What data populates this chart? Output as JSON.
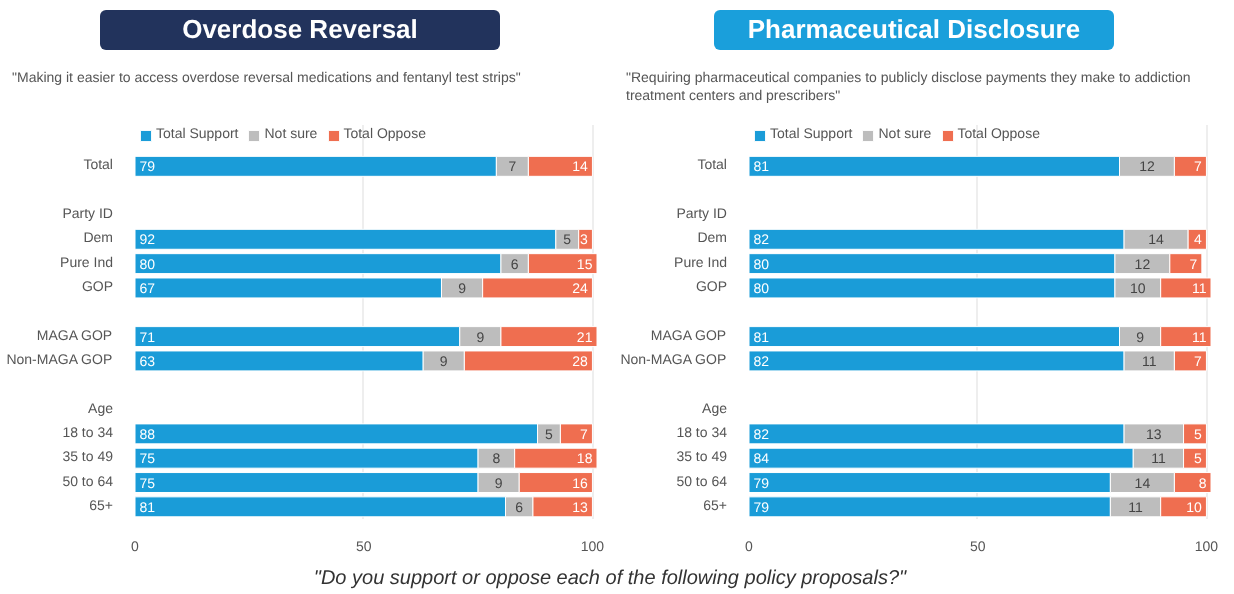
{
  "chart_data": [
    {
      "type": "bar",
      "orientation": "horizontal",
      "stacked": true,
      "title": "Overdose Reversal",
      "subtitle": "\"Making it easier to access overdose reversal medications and fentanyl test strips\"",
      "categories": [
        "Total",
        null,
        "Party ID",
        "Dem",
        "Pure Ind",
        "GOP",
        null,
        "MAGA GOP",
        "Non-MAGA GOP",
        null,
        "Age",
        "18 to 34",
        "35 to 49",
        "50 to 64",
        "65+"
      ],
      "series": [
        {
          "name": "Total Support",
          "color": "#1a9cd8",
          "values": [
            79,
            null,
            null,
            92,
            80,
            67,
            null,
            71,
            63,
            null,
            null,
            88,
            75,
            75,
            81
          ]
        },
        {
          "name": "Not sure",
          "color": "#bdbdbd",
          "values": [
            7,
            null,
            null,
            5,
            6,
            9,
            null,
            9,
            9,
            null,
            null,
            5,
            8,
            9,
            6
          ]
        },
        {
          "name": "Total Oppose",
          "color": "#ef6e50",
          "values": [
            14,
            null,
            null,
            3,
            15,
            24,
            null,
            21,
            28,
            null,
            null,
            7,
            18,
            16,
            13
          ]
        }
      ],
      "xlim": [
        0,
        101
      ],
      "xticks": [
        0,
        50,
        100
      ],
      "data_labels": true,
      "legend": "top left",
      "grid": "x",
      "annotations": [
        "\"Do you support or oppose each of the following policy proposals?\""
      ]
    },
    {
      "type": "bar",
      "orientation": "horizontal",
      "stacked": true,
      "title": "Pharmaceutical Disclosure",
      "subtitle": "\"Requiring pharmaceutical companies to publicly disclose payments they make to addiction treatment centers and prescribers\"",
      "categories": [
        "Total",
        null,
        "Party ID",
        "Dem",
        "Pure Ind",
        "GOP",
        null,
        "MAGA GOP",
        "Non-MAGA GOP",
        null,
        "Age",
        "18 to 34",
        "35 to 49",
        "50 to 64",
        "65+"
      ],
      "series": [
        {
          "name": "Total Support",
          "color": "#1a9cd8",
          "values": [
            81,
            null,
            null,
            82,
            80,
            80,
            null,
            81,
            82,
            null,
            null,
            82,
            84,
            79,
            79
          ]
        },
        {
          "name": "Not sure",
          "color": "#bdbdbd",
          "values": [
            12,
            null,
            null,
            14,
            12,
            10,
            null,
            9,
            11,
            null,
            null,
            13,
            11,
            14,
            11
          ]
        },
        {
          "name": "Total Oppose",
          "color": "#ef6e50",
          "values": [
            7,
            null,
            null,
            4,
            7,
            11,
            null,
            11,
            7,
            null,
            null,
            5,
            5,
            8,
            10
          ]
        }
      ],
      "xlim": [
        0,
        101
      ],
      "xticks": [
        0,
        50,
        100
      ],
      "data_labels": true,
      "legend": "top left",
      "grid": "x"
    }
  ]
}
